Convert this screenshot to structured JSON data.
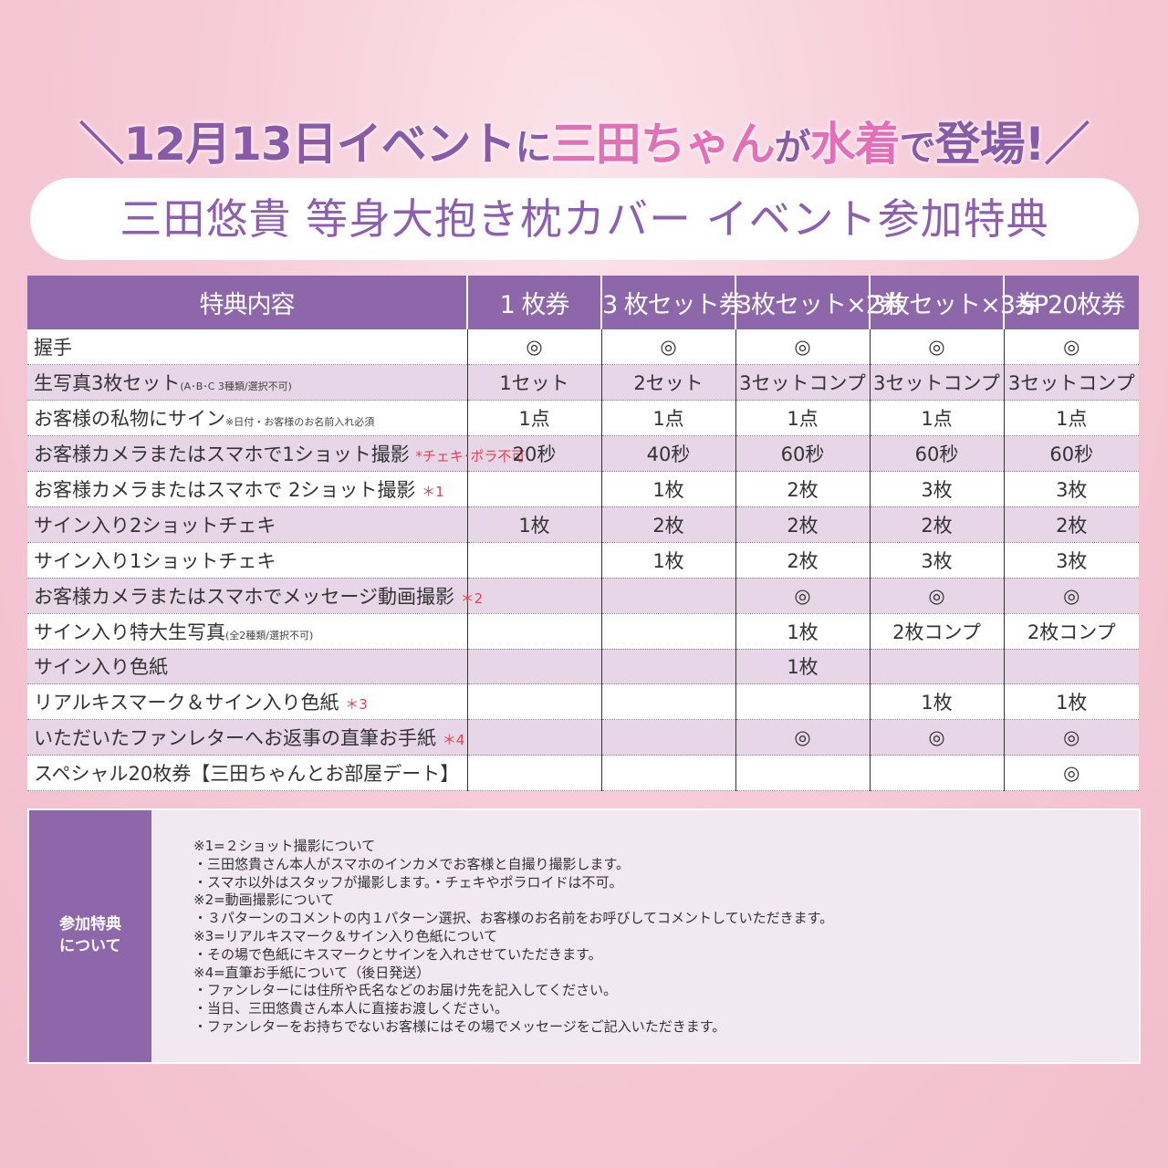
{
  "headline": [
    {
      "text": "＼12月13日イベント",
      "color": "#8a5aa8",
      "small": false
    },
    {
      "text": "に",
      "color": "#8a5aa8",
      "small": true
    },
    {
      "text": "三田ちゃん",
      "color": "#e46fb6",
      "small": false
    },
    {
      "text": "が",
      "color": "#8a5aa8",
      "small": true
    },
    {
      "text": "水着",
      "color": "#e46fb6",
      "small": false
    },
    {
      "text": "で",
      "color": "#8a5aa8",
      "small": true
    },
    {
      "text": "登場!／",
      "color": "#8a5aa8",
      "small": false
    }
  ],
  "subtitle": "三田悠貴 等身大抱き枕カバー イベント参加特典",
  "table": {
    "headers": [
      "特典内容",
      "1 枚券",
      "3 枚セット券",
      "3枚セット×2券",
      "3枚セット×3券",
      "SP20枚券"
    ],
    "rows": [
      {
        "label": "握手",
        "note": "",
        "red": "",
        "cells": [
          "◎",
          "◎",
          "◎",
          "◎",
          "◎"
        ]
      },
      {
        "label": "生写真3枚セット",
        "note": "(A･B･C 3種類/選択不可)",
        "red": "",
        "cells": [
          "1セット",
          "2セット",
          "3セットコンプ",
          "3セットコンプ",
          "3セットコンプ"
        ]
      },
      {
        "label": "お客様の私物にサイン",
        "note": "※日付・お客様のお名前入れ必須",
        "red": "",
        "cells": [
          "1点",
          "1点",
          "1点",
          "1点",
          "1点"
        ]
      },
      {
        "label": "お客様カメラまたはスマホで1ショット撮影",
        "note": "",
        "red": "*チェキ･ポラ不可",
        "cells": [
          "20秒",
          "40秒",
          "60秒",
          "60秒",
          "60秒"
        ]
      },
      {
        "label": "お客様カメラまたはスマホで 2ショット撮影",
        "note": "",
        "red": "＊1",
        "cells": [
          "",
          "1枚",
          "2枚",
          "3枚",
          "3枚"
        ]
      },
      {
        "label": "サイン入り2ショットチェキ",
        "note": "",
        "red": "",
        "cells": [
          "1枚",
          "2枚",
          "2枚",
          "2枚",
          "2枚"
        ]
      },
      {
        "label": "サイン入り1ショットチェキ",
        "note": "",
        "red": "",
        "cells": [
          "",
          "1枚",
          "2枚",
          "3枚",
          "3枚"
        ]
      },
      {
        "label": "お客様カメラまたはスマホでメッセージ動画撮影",
        "note": "",
        "red": "＊2",
        "cells": [
          "",
          "",
          "◎",
          "◎",
          "◎"
        ]
      },
      {
        "label": "サイン入り特大生写真",
        "note": "(全2種類/選択不可)",
        "red": "",
        "cells": [
          "",
          "",
          "1枚",
          "2枚コンプ",
          "2枚コンプ"
        ]
      },
      {
        "label": "サイン入り色紙",
        "note": "",
        "red": "",
        "cells": [
          "",
          "",
          "1枚",
          "",
          ""
        ]
      },
      {
        "label": "リアルキスマーク＆サイン入り色紙",
        "note": "",
        "red": "＊3",
        "cells": [
          "",
          "",
          "",
          "1枚",
          "1枚"
        ]
      },
      {
        "label": "いただいたファンレターへお返事の直筆お手紙",
        "note": "",
        "red": "＊4",
        "cells": [
          "",
          "",
          "◎",
          "◎",
          "◎"
        ]
      },
      {
        "label": "スペシャル20枚券【三田ちゃんとお部屋デート】",
        "note": "",
        "red": "",
        "cells": [
          "",
          "",
          "",
          "",
          "◎"
        ]
      }
    ]
  },
  "notes": {
    "label_line1": "参加特典",
    "label_line2": "について",
    "lines": [
      "※1=２ショット撮影について",
      "・三田悠貴さん本人がスマホのインカメでお客様と自撮り撮影します。",
      "・スマホ以外はスタッフが撮影します。・チェキやポラロイドは不可。",
      "※2=動画撮影について",
      "・３パターンのコメントの内１パターン選択、お客様のお名前をお呼びしてコメントしていただきます。",
      "※3=リアルキスマーク＆サイン入り色紙について",
      "・その場で色紙にキスマークとサインを入れさせていただきます。",
      "※4=直筆お手紙について（後日発送）",
      "・ファンレターには住所や氏名などのお届け先を記入してください。",
      "・当日、三田悠貴さん本人に直接お渡しください。",
      "・ファンレターをお持ちでないお客様にはその場でメッセージをご記入いただきます。"
    ]
  }
}
